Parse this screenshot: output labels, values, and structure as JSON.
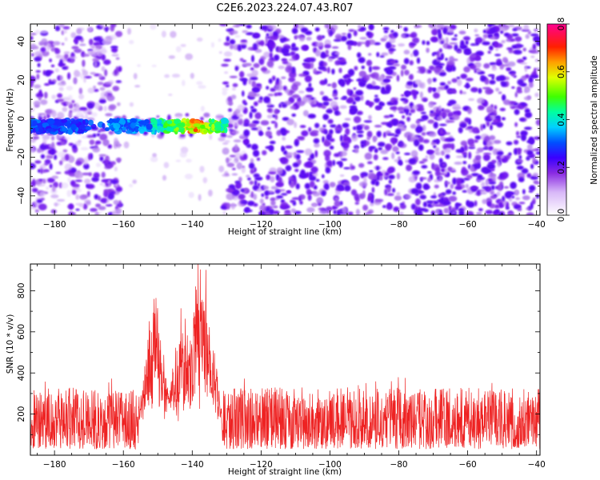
{
  "figure": {
    "title": "C2E6.2023.224.07.43.R07"
  },
  "colors": {
    "snr_line": "#ee2222",
    "spectrogram_speckle": "#7a1ef0",
    "background": "#ffffff"
  },
  "chart_data": [
    {
      "type": "heatmap",
      "title": "C2E6.2023.224.07.43.R07",
      "xlabel": "Height of straight line (km)",
      "ylabel": "Frequency (Hz)",
      "xlim": [
        -187,
        -39
      ],
      "ylim": [
        -50,
        49
      ],
      "xticks": [
        -180,
        -160,
        -140,
        -120,
        -100,
        -80,
        -60,
        -40
      ],
      "yticks": [
        -40,
        -20,
        0,
        20,
        40
      ],
      "colorbar": {
        "label": "Normalized spectral amplitude",
        "range": [
          0,
          0.8
        ],
        "ticks": [
          0.0,
          0.2,
          0.4,
          0.6,
          0.8
        ],
        "colormap": "white-purple-blue-cyan-green-yellow-orange-red-magenta"
      },
      "echo_band": {
        "x_range": [
          -187,
          -130
        ],
        "frequency_center": -4,
        "frequency_halfwidth": 3,
        "peak_x": -139,
        "peak_amplitude": 0.8
      },
      "low_noise_gap_x": [
        -162,
        -130
      ],
      "grid": false
    },
    {
      "type": "line",
      "xlabel": "Height of straight line (km)",
      "ylabel": "SNR (10 * v/v)",
      "xlim": [
        -187,
        -39
      ],
      "ylim": [
        0,
        930
      ],
      "xticks": [
        -180,
        -160,
        -140,
        -120,
        -100,
        -80,
        -60,
        -40
      ],
      "yticks": [
        200,
        400,
        600,
        800
      ],
      "grid": false,
      "series": [
        {
          "baseline_mean": 130,
          "typical_range": [
            30,
            330
          ],
          "peaks": [
            {
              "x": -151,
              "y": 750
            },
            {
              "x": -143,
              "y": 680
            },
            {
              "x": -138,
              "y": 920
            },
            {
              "x": -136,
              "y": 780
            }
          ]
        }
      ]
    }
  ]
}
